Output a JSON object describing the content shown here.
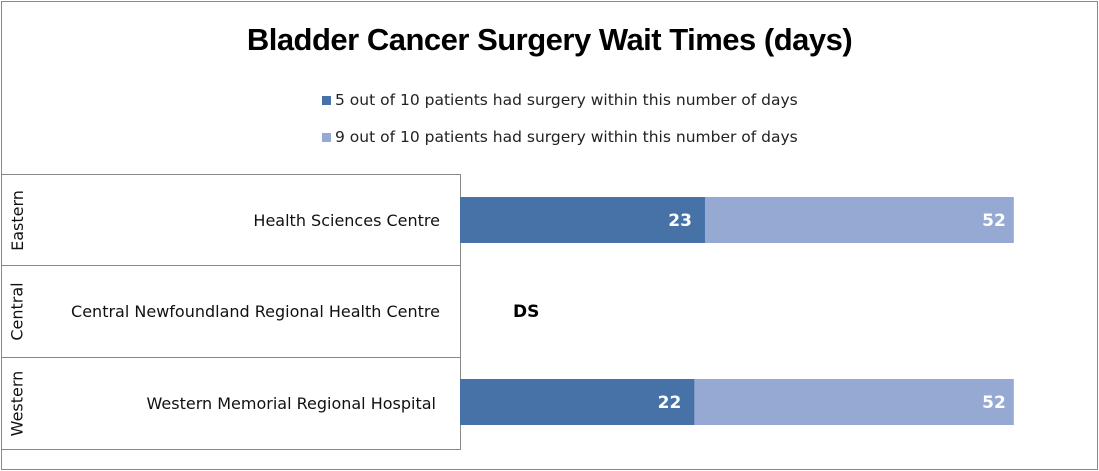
{
  "chart_data": {
    "type": "bar",
    "orientation": "horizontal",
    "title": "Bladder Cancer Surgery Wait Times (days)",
    "legend_position": "top",
    "grid": false,
    "xlim": [
      0,
      56
    ],
    "categories": [
      {
        "region": "Eastern",
        "hospital": "Health Sciences Centre"
      },
      {
        "region": "Central",
        "hospital": "Central Newfoundland Regional Health Centre"
      },
      {
        "region": "Western",
        "hospital": "Western Memorial Regional Hospital"
      }
    ],
    "series": [
      {
        "name": "5 out of 10 patients had surgery within this number of days",
        "color": "#4672a8",
        "values": [
          23,
          null,
          22
        ]
      },
      {
        "name": "9 out of 10 patients had surgery within this number of days",
        "color": "#95a9d2",
        "values": [
          52,
          null,
          52
        ]
      }
    ],
    "annotations": [
      {
        "category_index": 1,
        "text": "DS"
      }
    ]
  }
}
